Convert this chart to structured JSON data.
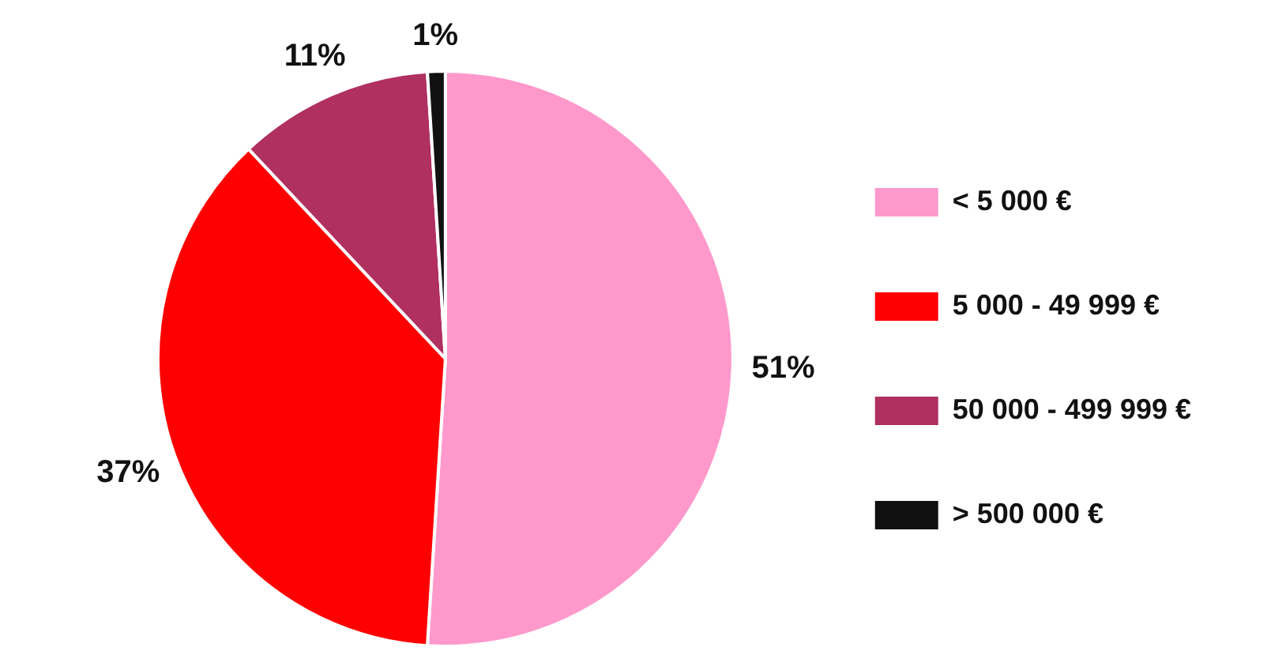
{
  "chart_data": {
    "type": "pie",
    "categories": [
      "< 5 000 €",
      "5 000 - 49 999 €",
      "50 000 - 499 999 €",
      "> 500 000 €"
    ],
    "values": [
      51,
      37,
      11,
      1
    ],
    "colors": [
      "#ff99cc",
      "#ff0000",
      "#b03060",
      "#111111"
    ],
    "value_labels": [
      "51%",
      "37%",
      "11%",
      "1%"
    ],
    "legend": "right"
  }
}
